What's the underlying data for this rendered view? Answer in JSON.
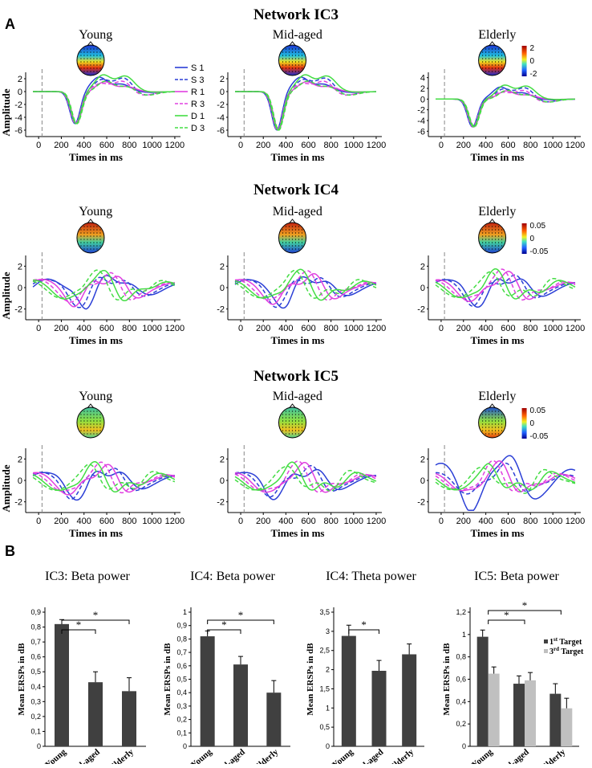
{
  "panel_labels": {
    "a": "A",
    "b": "B"
  },
  "group_titles": [
    "Young",
    "Mid-aged",
    "Elderly"
  ],
  "erp_axis": {
    "xlabel": "Times in ms",
    "ylabel": "Amplitude"
  },
  "legend": {
    "entries": [
      {
        "label": "S 1",
        "color": "#2b3fd6",
        "dash": false
      },
      {
        "label": "S 3",
        "color": "#2b3fd6",
        "dash": true
      },
      {
        "label": "R 1",
        "color": "#e040e0",
        "dash": false
      },
      {
        "label": "R 3",
        "color": "#e040e0",
        "dash": true
      },
      {
        "label": "D 1",
        "color": "#44dd44",
        "dash": false
      },
      {
        "label": "D 3",
        "color": "#44dd44",
        "dash": true
      }
    ]
  },
  "networks": [
    {
      "title": "Network IC3",
      "scalebar": {
        "top": "2",
        "mid": "0",
        "bottom": "-2"
      },
      "panels": [
        {
          "ytick_labels": [
            "2",
            "0",
            "-2",
            "-4",
            "-6"
          ],
          "xtick_labels": [
            "0",
            "200",
            "400",
            "600",
            "800",
            "1000",
            "1200"
          ]
        },
        {
          "ytick_labels": [
            "2",
            "0",
            "-2",
            "-4",
            "-6"
          ],
          "xtick_labels": [
            "0",
            "200",
            "400",
            "600",
            "800",
            "1000",
            "1200"
          ]
        },
        {
          "ytick_labels": [
            "4",
            "2",
            "0",
            "-2",
            "-4",
            "-6"
          ],
          "xtick_labels": [
            "0",
            "200",
            "400",
            "600",
            "800",
            "1000",
            "1200"
          ]
        }
      ]
    },
    {
      "title": "Network IC4",
      "scalebar": {
        "top": "0.05",
        "mid": "0",
        "bottom": "-0.05"
      },
      "panels": [
        {
          "ytick_labels": [
            "2",
            "0",
            "-2"
          ],
          "xtick_labels": [
            "0",
            "200",
            "400",
            "600",
            "800",
            "1000",
            "1200"
          ]
        },
        {
          "ytick_labels": [
            "2",
            "0",
            "-2"
          ],
          "xtick_labels": [
            "0",
            "200",
            "400",
            "600",
            "800",
            "1000",
            "1200"
          ]
        },
        {
          "ytick_labels": [
            "2",
            "0",
            "-2"
          ],
          "xtick_labels": [
            "0",
            "200",
            "400",
            "600",
            "800",
            "1000",
            "1200"
          ]
        }
      ]
    },
    {
      "title": "Network IC5",
      "scalebar": {
        "top": "0.05",
        "mid": "0",
        "bottom": "-0.05"
      },
      "panels": [
        {
          "ytick_labels": [
            "2",
            "0",
            "-2"
          ],
          "xtick_labels": [
            "0",
            "200",
            "400",
            "600",
            "800",
            "1000",
            "1200"
          ]
        },
        {
          "ytick_labels": [
            "2",
            "0",
            "-2"
          ],
          "xtick_labels": [
            "0",
            "200",
            "400",
            "600",
            "800",
            "1000",
            "1200"
          ]
        },
        {
          "ytick_labels": [
            "2",
            "0",
            "-2"
          ],
          "xtick_labels": [
            "0",
            "200",
            "400",
            "600",
            "800",
            "1000",
            "1200"
          ]
        }
      ]
    }
  ],
  "chart_data": [
    {
      "type": "bar",
      "title": "IC3: Beta power",
      "ylabel": "Mean ERSPs in dB",
      "categories": [
        "Young",
        "Mid-aged",
        "Elderly"
      ],
      "series": [
        {
          "name": "",
          "values": [
            0.82,
            0.43,
            0.37
          ],
          "errors": [
            0.03,
            0.07,
            0.09
          ],
          "color": "#404040"
        }
      ],
      "ylim": [
        0,
        0.9
      ],
      "yticks": [
        "0",
        "0,1",
        "0,2",
        "0,3",
        "0,4",
        "0,5",
        "0,6",
        "0,7",
        "0,8",
        "0,9"
      ],
      "significance": [
        {
          "from": 0,
          "to": 1,
          "label": "*"
        },
        {
          "from": 0,
          "to": 2,
          "label": "*"
        }
      ]
    },
    {
      "type": "bar",
      "title": "IC4: Beta power",
      "ylabel": "Mean ERSPs in dB",
      "categories": [
        "Young",
        "Mid-aged",
        "Elderly"
      ],
      "series": [
        {
          "name": "",
          "values": [
            0.82,
            0.61,
            0.4
          ],
          "errors": [
            0.04,
            0.06,
            0.09
          ],
          "color": "#404040"
        }
      ],
      "ylim": [
        0,
        1
      ],
      "yticks": [
        "0",
        "0,1",
        "0,2",
        "0,3",
        "0,4",
        "0,5",
        "0,6",
        "0,7",
        "0,8",
        "0,9",
        "1"
      ],
      "significance": [
        {
          "from": 0,
          "to": 1,
          "label": "*"
        },
        {
          "from": 0,
          "to": 2,
          "label": "*"
        }
      ]
    },
    {
      "type": "bar",
      "title": "IC4: Theta power",
      "ylabel": "Mean ERSPs in dB",
      "categories": [
        "Young",
        "Mid-aged",
        "Elderly"
      ],
      "series": [
        {
          "name": "",
          "values": [
            2.88,
            1.97,
            2.4
          ],
          "errors": [
            0.28,
            0.27,
            0.27
          ],
          "color": "#404040"
        }
      ],
      "ylim": [
        0,
        3.5
      ],
      "yticks": [
        "0",
        "0,5",
        "1",
        "1,5",
        "2",
        "2,5",
        "3",
        "3,5"
      ],
      "significance": [
        {
          "from": 0,
          "to": 1,
          "label": "*"
        }
      ]
    },
    {
      "type": "bar",
      "title": "IC5: Beta power",
      "ylabel": "Mean ERSPs in dB",
      "categories": [
        "Young",
        "Mid-aged",
        "Elderly"
      ],
      "series": [
        {
          "name": "1st Target",
          "values": [
            0.98,
            0.56,
            0.47
          ],
          "errors": [
            0.06,
            0.07,
            0.09
          ],
          "color": "#404040"
        },
        {
          "name": "3rd Target",
          "values": [
            0.65,
            0.59,
            0.34
          ],
          "errors": [
            0.06,
            0.07,
            0.09
          ],
          "color": "#c0c0c0"
        }
      ],
      "ylim": [
        0,
        1.2
      ],
      "yticks": [
        "0",
        "0,2",
        "0,4",
        "0,6",
        "0,8",
        "1",
        "1,2"
      ],
      "legend_labels": [
        {
          "base": "1",
          "sup": "st",
          "rest": " Target"
        },
        {
          "base": "3",
          "sup": "rd",
          "rest": " Target"
        }
      ],
      "significance": [
        {
          "from": 0,
          "to": 1,
          "label": "*"
        },
        {
          "from": 0,
          "to": 2,
          "label": "*"
        }
      ]
    }
  ]
}
